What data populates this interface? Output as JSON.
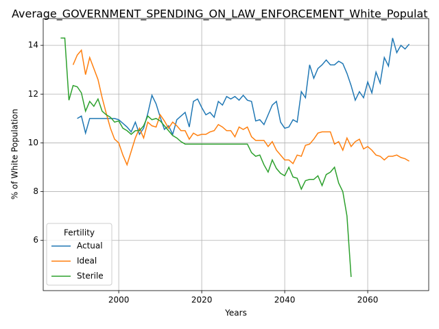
{
  "chart_data": {
    "type": "line",
    "title": "Average_GOVERNMENT_SPENDING_ON_LAW_ENFORCEMENT_White_Populat",
    "xlabel": "Years",
    "ylabel": "% of White Population",
    "x": [
      1986,
      1987,
      1988,
      1989,
      1990,
      1991,
      1992,
      1993,
      1994,
      1995,
      1996,
      1997,
      1998,
      1999,
      2000,
      2001,
      2002,
      2003,
      2004,
      2005,
      2006,
      2007,
      2008,
      2009,
      2010,
      2011,
      2012,
      2013,
      2014,
      2015,
      2016,
      2017,
      2018,
      2019,
      2020,
      2021,
      2022,
      2023,
      2024,
      2025,
      2026,
      2027,
      2028,
      2029,
      2030,
      2031,
      2032,
      2033,
      2034,
      2035,
      2036,
      2037,
      2038,
      2039,
      2040,
      2041,
      2042,
      2043,
      2044,
      2045,
      2046,
      2047,
      2048,
      2049,
      2050,
      2051,
      2052,
      2053,
      2054,
      2055,
      2056,
      2057,
      2058,
      2059,
      2060,
      2061,
      2062,
      2063,
      2064,
      2065,
      2066,
      2067,
      2068,
      2069,
      2070
    ],
    "series": [
      {
        "name": "Actual",
        "color": "#1f77b4",
        "values": [
          null,
          null,
          null,
          null,
          11.0,
          11.1,
          10.4,
          11.0,
          11.0,
          11.0,
          11.0,
          11.0,
          11.0,
          11.0,
          10.95,
          10.8,
          10.65,
          10.45,
          10.85,
          10.35,
          10.6,
          11.2,
          11.95,
          11.6,
          11.05,
          10.55,
          10.7,
          10.35,
          10.95,
          11.1,
          11.25,
          10.65,
          11.7,
          11.8,
          11.45,
          11.15,
          11.25,
          11.05,
          11.7,
          11.55,
          11.9,
          11.8,
          11.9,
          11.75,
          11.95,
          11.75,
          11.7,
          10.9,
          10.95,
          10.75,
          11.15,
          11.55,
          11.7,
          10.85,
          10.6,
          10.65,
          10.95,
          10.85,
          12.1,
          11.85,
          13.2,
          12.65,
          13.05,
          13.2,
          13.4,
          13.2,
          13.2,
          13.35,
          13.25,
          12.85,
          12.35,
          11.75,
          12.1,
          11.85,
          12.5,
          12.05,
          12.9,
          12.45,
          13.5,
          13.15,
          14.3,
          13.7,
          14.0,
          13.85,
          14.05
        ]
      },
      {
        "name": "Ideal",
        "color": "#ff7f0e",
        "values": [
          null,
          null,
          null,
          13.2,
          13.6,
          13.8,
          12.8,
          13.5,
          13.05,
          12.6,
          11.85,
          11.2,
          10.6,
          10.15,
          10.0,
          9.5,
          9.1,
          9.65,
          10.2,
          10.6,
          10.2,
          10.85,
          10.7,
          10.65,
          11.15,
          10.9,
          10.6,
          10.85,
          10.7,
          10.5,
          10.5,
          10.15,
          10.4,
          10.3,
          10.35,
          10.35,
          10.45,
          10.5,
          10.75,
          10.65,
          10.5,
          10.5,
          10.25,
          10.65,
          10.55,
          10.65,
          10.25,
          10.1,
          10.1,
          10.1,
          9.85,
          10.05,
          9.7,
          9.5,
          9.3,
          9.3,
          9.15,
          9.5,
          9.45,
          9.9,
          9.95,
          10.15,
          10.4,
          10.45,
          10.45,
          10.45,
          9.95,
          10.05,
          9.7,
          10.2,
          9.85,
          10.05,
          10.15,
          9.75,
          9.85,
          9.7,
          9.5,
          9.45,
          9.3,
          9.45,
          9.45,
          9.5,
          9.4,
          9.35,
          9.25
        ]
      },
      {
        "name": "Sterile",
        "color": "#2ca02c",
        "values": [
          14.3,
          14.3,
          11.75,
          12.35,
          12.3,
          12.05,
          11.3,
          11.7,
          11.5,
          11.8,
          11.3,
          11.15,
          11.05,
          10.85,
          10.9,
          10.6,
          10.5,
          10.35,
          10.5,
          10.5,
          10.7,
          11.1,
          10.95,
          11.0,
          10.9,
          10.7,
          10.5,
          10.3,
          10.2,
          10.05,
          9.95,
          9.95,
          9.95,
          9.95,
          9.95,
          9.95,
          9.95,
          9.95,
          9.95,
          9.95,
          9.95,
          9.95,
          9.95,
          9.95,
          9.95,
          9.95,
          9.6,
          9.45,
          9.5,
          9.1,
          8.8,
          9.3,
          8.95,
          8.75,
          8.65,
          9.0,
          8.6,
          8.55,
          8.1,
          8.45,
          8.5,
          8.5,
          8.65,
          8.25,
          8.7,
          8.8,
          9.0,
          8.35,
          8.0,
          7.0,
          4.5,
          null,
          null,
          null,
          null,
          null,
          null,
          null,
          null,
          null,
          null,
          null,
          null,
          null,
          null
        ]
      }
    ],
    "xlim": [
      1981.8,
      2074.7
    ],
    "ylim": [
      3.94,
      15.1
    ],
    "xticks": [
      2000,
      2020,
      2040,
      2060
    ],
    "yticks": [
      6,
      8,
      10,
      12,
      14
    ],
    "grid": true,
    "legend_title": "Fertility",
    "legend": "lower left"
  }
}
